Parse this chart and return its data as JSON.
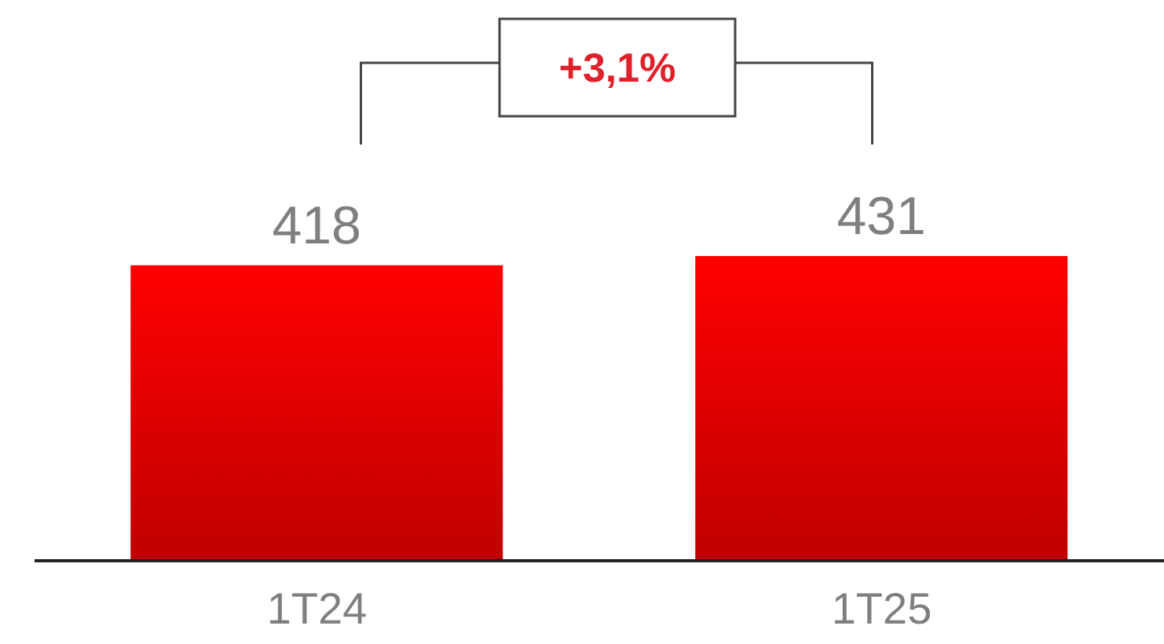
{
  "chart_data": {
    "type": "bar",
    "categories": [
      "1T24",
      "1T25"
    ],
    "values": [
      418,
      431
    ],
    "color": "#ff0000",
    "data_labels": true,
    "annotations": [
      "+3,1%"
    ]
  }
}
